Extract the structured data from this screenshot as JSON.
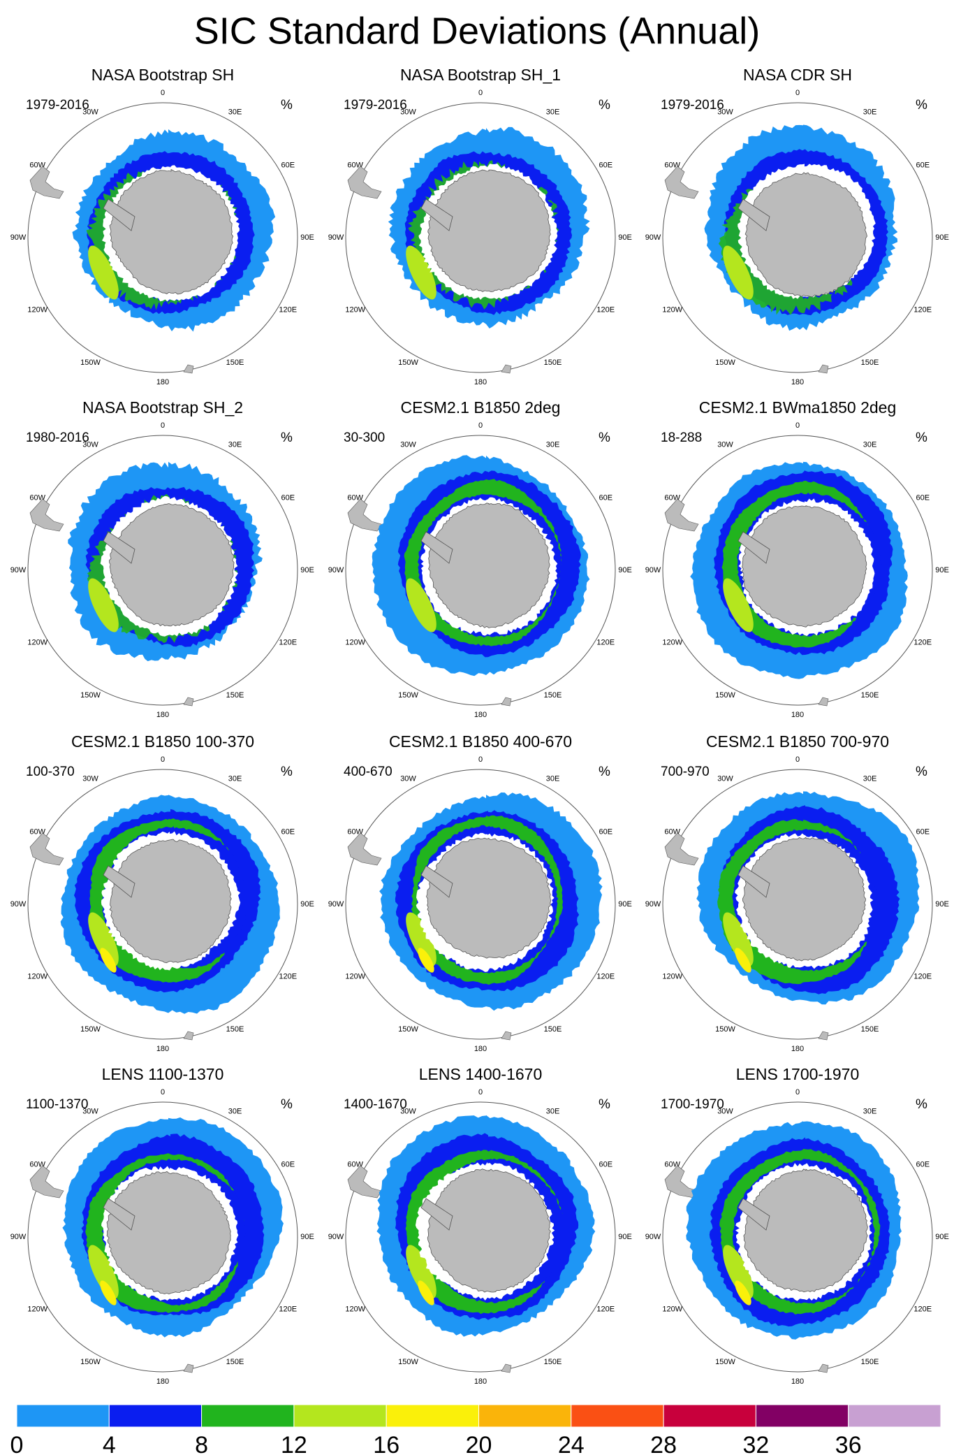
{
  "title": "SIC Standard Deviations (Annual)",
  "units": "%",
  "lon_labels": [
    "0",
    "30E",
    "60E",
    "90E",
    "120E",
    "150E",
    "180",
    "150W",
    "120W",
    "90W",
    "60W",
    "30W"
  ],
  "panels": [
    {
      "title": "NASA Bootstrap SH",
      "period": "1979-2016"
    },
    {
      "title": "NASA Bootstrap SH_1",
      "period": "1979-2016"
    },
    {
      "title": "NASA CDR SH",
      "period": "1979-2016"
    },
    {
      "title": "NASA Bootstrap SH_2",
      "period": "1980-2016"
    },
    {
      "title": "CESM2.1 B1850 2deg",
      "period": "30-300"
    },
    {
      "title": "CESM2.1 BWma1850 2deg",
      "period": "18-288"
    },
    {
      "title": "CESM2.1 B1850 100-370",
      "period": "100-370"
    },
    {
      "title": "CESM2.1 B1850 400-670",
      "period": "400-670"
    },
    {
      "title": "CESM2.1 B1850 700-970",
      "period": "700-970"
    },
    {
      "title": "LENS 1100-1370",
      "period": "1100-1370"
    },
    {
      "title": "LENS 1400-1670",
      "period": "1400-1670"
    },
    {
      "title": "LENS 1700-1970",
      "period": "1700-1970"
    }
  ],
  "colorbar": {
    "levels": [
      0,
      4,
      8,
      12,
      16,
      20,
      24,
      28,
      32,
      36
    ],
    "colors": [
      "#1e96f5",
      "#0a1ef0",
      "#21b41e",
      "#b4e61e",
      "#faf00a",
      "#fab40a",
      "#fa5014",
      "#c8003c",
      "#820064",
      "#c8a0d2"
    ]
  }
}
